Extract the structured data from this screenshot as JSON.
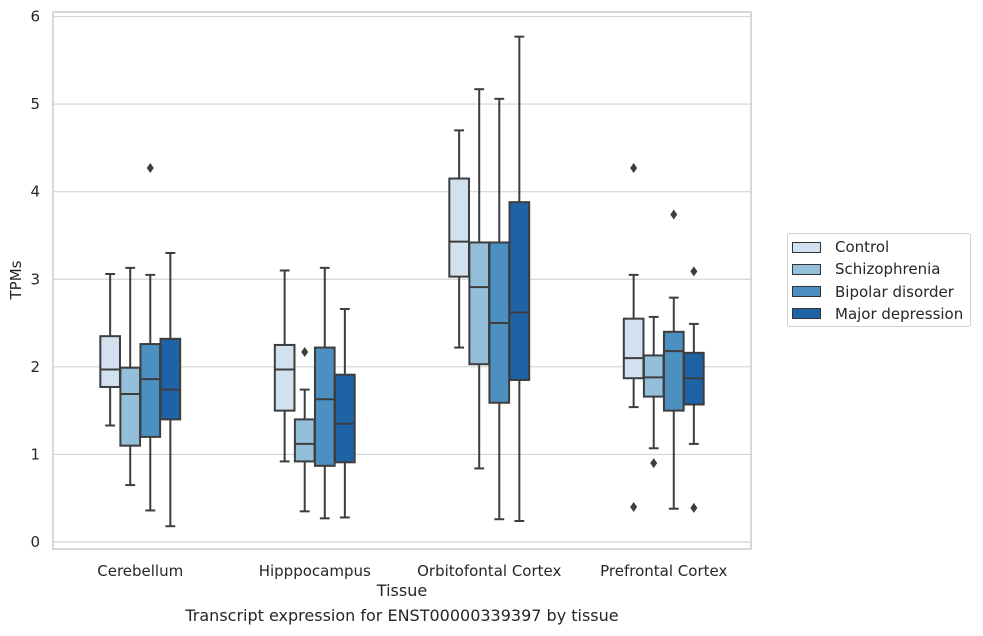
{
  "chart_data": {
    "type": "box",
    "ylabel": "TPMs",
    "xlabel": "Tissue",
    "ylim": [
      0,
      6
    ],
    "yticks": [
      0,
      1,
      2,
      3,
      4,
      5,
      6
    ],
    "grid": true,
    "legend_placement": "right",
    "categories": [
      "Cerebellum",
      "Hipppocampus",
      "Orbitofontal Cortex",
      "Prefrontal Cortex"
    ],
    "series": [
      {
        "name": "Control",
        "color": "#d1e1f0",
        "boxes": [
          {
            "whislo": 1.33,
            "q1": 1.77,
            "med": 1.97,
            "q3": 2.35,
            "whishi": 3.06,
            "fliers": []
          },
          {
            "whislo": 0.92,
            "q1": 1.5,
            "med": 1.97,
            "q3": 2.25,
            "whishi": 3.1,
            "fliers": []
          },
          {
            "whislo": 2.22,
            "q1": 3.03,
            "med": 3.43,
            "q3": 4.15,
            "whishi": 4.7,
            "fliers": []
          },
          {
            "whislo": 1.54,
            "q1": 1.87,
            "med": 2.1,
            "q3": 2.55,
            "whishi": 3.05,
            "fliers": [
              4.27,
              0.4
            ]
          }
        ]
      },
      {
        "name": "Schizophrenia",
        "color": "#93bfdb",
        "boxes": [
          {
            "whislo": 0.65,
            "q1": 1.1,
            "med": 1.69,
            "q3": 1.99,
            "whishi": 3.13,
            "fliers": []
          },
          {
            "whislo": 0.35,
            "q1": 0.92,
            "med": 1.12,
            "q3": 1.4,
            "whishi": 1.74,
            "fliers": [
              2.17
            ]
          },
          {
            "whislo": 0.84,
            "q1": 2.03,
            "med": 2.91,
            "q3": 3.42,
            "whishi": 5.17,
            "fliers": []
          },
          {
            "whislo": 1.07,
            "q1": 1.66,
            "med": 1.88,
            "q3": 2.13,
            "whishi": 2.57,
            "fliers": [
              0.9
            ]
          }
        ]
      },
      {
        "name": "Bipolar disorder",
        "color": "#4c90c2",
        "boxes": [
          {
            "whislo": 0.36,
            "q1": 1.2,
            "med": 1.86,
            "q3": 2.26,
            "whishi": 3.05,
            "fliers": [
              4.27
            ]
          },
          {
            "whislo": 0.27,
            "q1": 0.87,
            "med": 1.63,
            "q3": 2.22,
            "whishi": 3.13,
            "fliers": []
          },
          {
            "whislo": 0.26,
            "q1": 1.59,
            "med": 2.5,
            "q3": 3.42,
            "whishi": 5.06,
            "fliers": []
          },
          {
            "whislo": 0.38,
            "q1": 1.5,
            "med": 2.18,
            "q3": 2.4,
            "whishi": 2.79,
            "fliers": [
              3.74
            ]
          }
        ]
      },
      {
        "name": "Major depression",
        "color": "#1d63a6",
        "boxes": [
          {
            "whislo": 0.18,
            "q1": 1.4,
            "med": 1.74,
            "q3": 2.32,
            "whishi": 3.3,
            "fliers": []
          },
          {
            "whislo": 0.28,
            "q1": 0.91,
            "med": 1.35,
            "q3": 1.91,
            "whishi": 2.66,
            "fliers": []
          },
          {
            "whislo": 0.24,
            "q1": 1.85,
            "med": 2.62,
            "q3": 3.88,
            "whishi": 5.77,
            "fliers": []
          },
          {
            "whislo": 1.12,
            "q1": 1.57,
            "med": 1.87,
            "q3": 2.16,
            "whishi": 2.49,
            "fliers": [
              3.09,
              0.39
            ]
          }
        ]
      }
    ]
  },
  "caption": "Transcript expression for ENST00000339397 by tissue"
}
